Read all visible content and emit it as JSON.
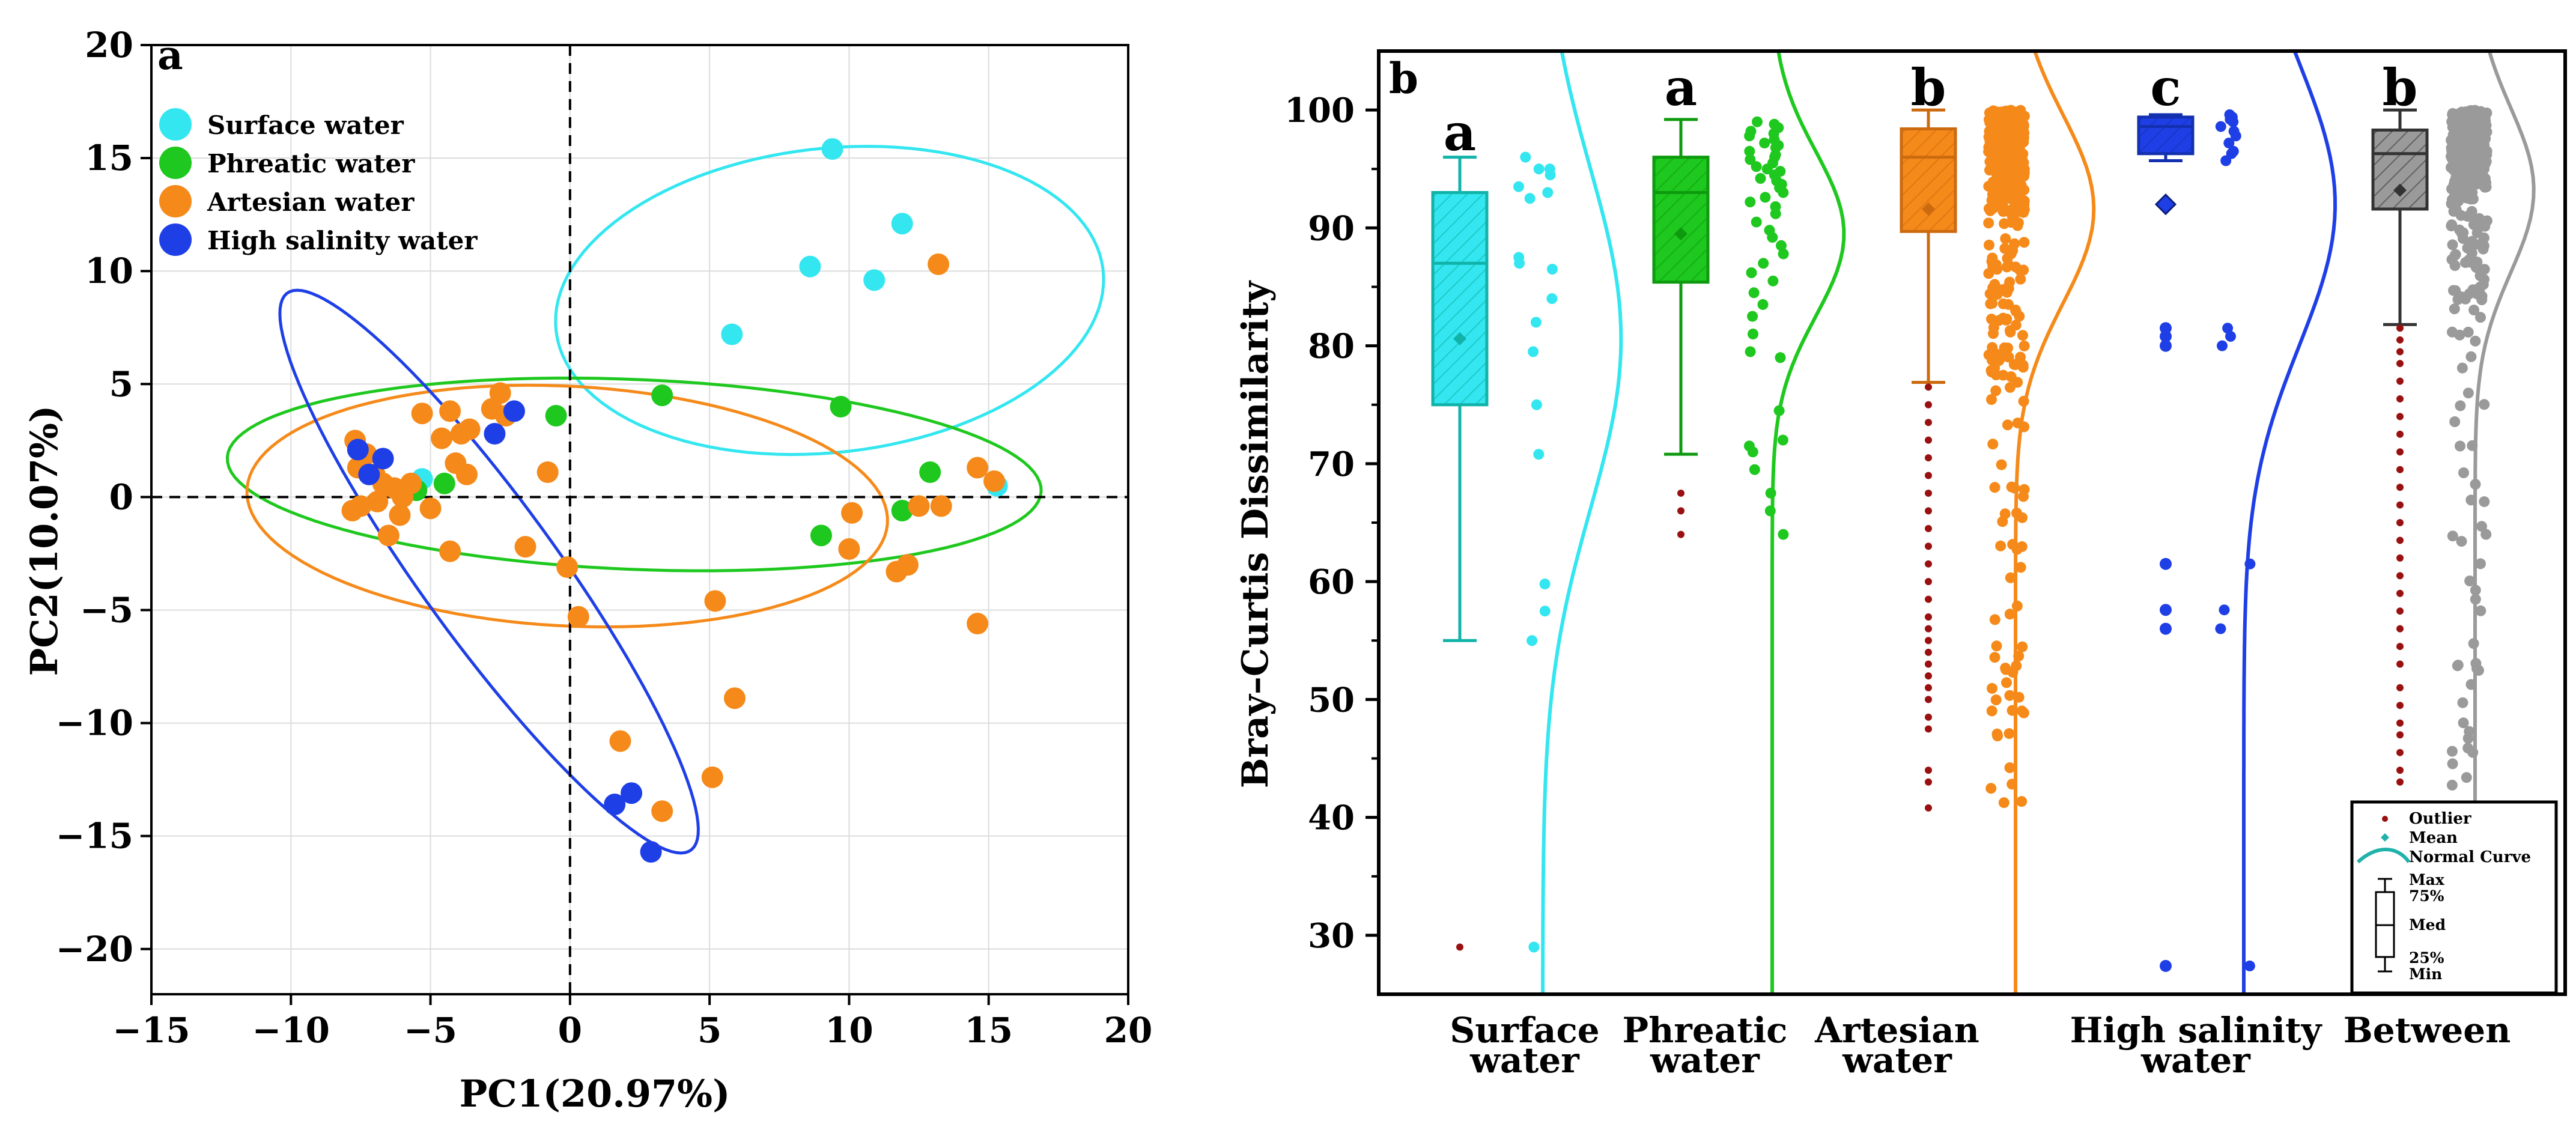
{
  "colors": {
    "surface": "#33e6f0",
    "phreatic": "#1ec81e",
    "artesian": "#f58a1a",
    "high_salinity": "#1f3fe6",
    "between": "#9a9a9a",
    "outlier": "#9a1010"
  },
  "chart_data": [
    {
      "type": "scatter",
      "panel_letter": "a",
      "xlabel": "PC1(20.97%)",
      "ylabel": "PC2(10.07%)",
      "xlim": [
        -15,
        20
      ],
      "ylim": [
        -22,
        20
      ],
      "xticks": [
        -15,
        -10,
        -5,
        0,
        5,
        10,
        15,
        20
      ],
      "yticks": [
        -20,
        -15,
        -10,
        -5,
        0,
        5,
        10,
        15,
        20
      ],
      "xtick_labels": [
        "−15",
        "−10",
        "−5",
        "0",
        "5",
        "10",
        "15",
        "20"
      ],
      "ytick_labels": [
        "−20",
        "−15",
        "−10",
        "−5",
        "0",
        "5",
        "10",
        "15",
        "20"
      ],
      "grid": true,
      "legend_position": "top-left",
      "series": [
        {
          "name": "Surface water",
          "key": "surface",
          "points": [
            [
              9.4,
              15.4
            ],
            [
              11.9,
              12.1
            ],
            [
              8.6,
              10.2
            ],
            [
              10.9,
              9.6
            ],
            [
              5.8,
              7.2
            ],
            [
              15.3,
              0.5
            ],
            [
              -5.3,
              0.8
            ]
          ],
          "ellipse": {
            "cx": 9.3,
            "cy": 8.7,
            "rx": 9.9,
            "ry": 6.7,
            "angle_deg": 10
          }
        },
        {
          "name": "Phreatic water",
          "key": "phreatic",
          "points": [
            [
              3.3,
              4.5
            ],
            [
              -0.5,
              3.6
            ],
            [
              9.7,
              4.0
            ],
            [
              12.9,
              1.1
            ],
            [
              11.9,
              -0.6
            ],
            [
              9.0,
              -1.7
            ],
            [
              -5.5,
              0.3
            ],
            [
              -4.5,
              0.6
            ]
          ],
          "ellipse": {
            "cx": 2.3,
            "cy": 1.0,
            "rx": 14.6,
            "ry": 4.2,
            "angle_deg": -3
          }
        },
        {
          "name": "Artesian water",
          "key": "artesian",
          "points": [
            [
              -7.7,
              2.5
            ],
            [
              -7.3,
              1.9
            ],
            [
              -7.6,
              1.3
            ],
            [
              -7.0,
              1.0
            ],
            [
              -6.7,
              0.6
            ],
            [
              -6.3,
              0.4
            ],
            [
              -6.0,
              0.0
            ],
            [
              -6.9,
              -0.2
            ],
            [
              -7.5,
              -0.4
            ],
            [
              -7.8,
              -0.6
            ],
            [
              -6.5,
              -1.7
            ],
            [
              -6.1,
              -0.8
            ],
            [
              -5.0,
              -0.5
            ],
            [
              -5.7,
              0.6
            ],
            [
              -5.3,
              3.7
            ],
            [
              -4.6,
              2.6
            ],
            [
              -4.3,
              3.8
            ],
            [
              -3.9,
              2.8
            ],
            [
              -3.6,
              3.0
            ],
            [
              -4.1,
              1.5
            ],
            [
              -3.7,
              1.0
            ],
            [
              -2.8,
              3.9
            ],
            [
              -2.5,
              4.6
            ],
            [
              -2.3,
              3.6
            ],
            [
              -4.3,
              -2.4
            ],
            [
              -1.6,
              -2.2
            ],
            [
              -0.8,
              1.1
            ],
            [
              -0.1,
              -3.1
            ],
            [
              0.3,
              -5.3
            ],
            [
              1.8,
              -10.8
            ],
            [
              3.3,
              -13.9
            ],
            [
              5.2,
              -4.6
            ],
            [
              5.1,
              -12.4
            ],
            [
              5.9,
              -8.9
            ],
            [
              10.0,
              -2.3
            ],
            [
              10.1,
              -0.7
            ],
            [
              11.7,
              -3.3
            ],
            [
              12.1,
              -3.0
            ],
            [
              12.5,
              -0.4
            ],
            [
              13.2,
              10.3
            ],
            [
              13.3,
              -0.4
            ],
            [
              14.6,
              1.3
            ],
            [
              14.6,
              -5.6
            ],
            [
              15.2,
              0.7
            ]
          ],
          "ellipse": {
            "cx": -0.1,
            "cy": -0.4,
            "rx": 11.5,
            "ry": 5.3,
            "angle_deg": -4
          }
        },
        {
          "name": "High salinity water",
          "key": "high_salinity",
          "points": [
            [
              -7.6,
              2.1
            ],
            [
              -6.7,
              1.7
            ],
            [
              -7.2,
              1.0
            ],
            [
              -2.7,
              2.8
            ],
            [
              -2.0,
              3.8
            ],
            [
              1.6,
              -13.6
            ],
            [
              2.2,
              -13.1
            ],
            [
              2.9,
              -15.7
            ]
          ],
          "ellipse": {
            "cx": -2.9,
            "cy": -3.3,
            "rx": 14.3,
            "ry": 2.6,
            "angle_deg": -60
          }
        }
      ],
      "dashed_reference_lines": {
        "x": 0,
        "y": 0
      }
    },
    {
      "type": "box",
      "panel_letter": "b",
      "ylabel": "Bray–Curtis Dissimilarity",
      "ylim": [
        25,
        105
      ],
      "yticks": [
        30,
        40,
        50,
        60,
        70,
        80,
        90,
        100
      ],
      "categories": [
        {
          "name_line1": "Surface",
          "name_line2": "water",
          "sig": "a",
          "key": "surface",
          "min": 55.0,
          "q1": 75.0,
          "median": 87.0,
          "q3": 93.0,
          "max": 96.0,
          "mean": 80.6,
          "outliers": [
            29.0
          ],
          "points": [
            96.0,
            95.0,
            95.0,
            94.5,
            93.5,
            93.0,
            92.5,
            87.5,
            87.0,
            86.5,
            84.0,
            82.0,
            79.5,
            75.0,
            70.8,
            59.8,
            57.5,
            55.0,
            29.0
          ],
          "curve": {
            "mu": 80.6,
            "sigma": 14.5,
            "width": 0.12
          }
        },
        {
          "name_line1": "Phreatic",
          "name_line2": "water",
          "sig": "a",
          "key": "phreatic",
          "min": 70.8,
          "q1": 85.4,
          "median": 93.0,
          "q3": 96.0,
          "max": 99.2,
          "mean": 89.5,
          "outliers": [
            67.5,
            66.0,
            64.0
          ],
          "points": [
            99.0,
            98.8,
            98.5,
            98.2,
            98.0,
            97.8,
            97.5,
            97.2,
            97.0,
            96.8,
            96.5,
            96.2,
            96.0,
            95.8,
            95.5,
            95.2,
            95.0,
            94.8,
            94.5,
            94.2,
            94.0,
            93.7,
            93.4,
            93.0,
            92.6,
            92.2,
            91.8,
            91.2,
            90.5,
            89.8,
            89.2,
            88.5,
            87.8,
            87.0,
            86.2,
            85.5,
            84.5,
            83.5,
            82.5,
            81.0,
            79.5,
            79.0,
            74.5,
            72.0,
            71.5,
            71.0,
            69.5,
            67.5,
            66.0,
            64.0
          ],
          "curve": {
            "mu": 89.5,
            "sigma": 7.0,
            "width": 0.11
          }
        },
        {
          "name_line1": "Artesian",
          "name_line2": "water",
          "sig": "b",
          "key": "artesian",
          "min": 76.9,
          "q1": 89.7,
          "median": 96.0,
          "q3": 98.4,
          "max": 100.0,
          "mean": 91.6,
          "outliers": [
            76.5,
            75.0,
            73.5,
            72.0,
            70.5,
            69.0,
            67.5,
            66.0,
            64.5,
            63.0,
            61.5,
            60.0,
            58.5,
            57.0,
            56.0,
            55.0,
            54.0,
            53.0,
            52.0,
            51.0,
            50.0,
            48.5,
            47.5,
            44.0,
            43.0,
            40.8
          ],
          "curve": {
            "mu": 91.6,
            "sigma": 8.0,
            "width": 0.12
          }
        },
        {
          "name_line1": "High salinity",
          "name_line2": "water",
          "sig": "c",
          "key": "high_salinity",
          "min": 95.7,
          "q1": 96.3,
          "median": 98.6,
          "q3": 99.4,
          "max": 99.6,
          "mean": 92.0,
          "outliers": [
            81.5,
            80.8,
            80.0,
            61.5,
            57.6,
            56.0,
            27.4
          ],
          "points": [
            99.6,
            99.4,
            99.2,
            99.0,
            98.6,
            98.2,
            97.8,
            97.2,
            96.5,
            96.3,
            95.7,
            81.5,
            80.8,
            80.0,
            61.5,
            57.6,
            56.0,
            27.4
          ],
          "curve": {
            "mu": 92.0,
            "sigma": 12.0,
            "width": 0.14
          }
        },
        {
          "name_line1": "Between",
          "name_line2": "",
          "sig": "b",
          "key": "between",
          "min": 81.8,
          "q1": 91.6,
          "median": 96.3,
          "q3": 98.3,
          "max": 100.0,
          "mean": 93.2,
          "outliers": [
            81.5,
            80.5,
            79.5,
            78.5,
            77.0,
            75.5,
            74.0,
            72.5,
            71.0,
            69.5,
            68.0,
            66.5,
            65.0,
            63.5,
            62.0,
            60.5,
            59.0,
            57.5,
            56.0,
            54.5,
            53.0,
            51.0,
            49.5,
            48.0,
            47.0,
            45.5,
            44.0,
            43.0
          ],
          "curve": {
            "mu": 93.2,
            "sigma": 7.0,
            "width": 0.09
          }
        }
      ],
      "legend": {
        "position": "bottom-right",
        "outlier": "Outlier",
        "mean": "Mean",
        "normal_curve": "Normal Curve",
        "max": "Max",
        "q3": "75%",
        "median": "Med",
        "q1": "25%",
        "min": "Min"
      }
    }
  ]
}
